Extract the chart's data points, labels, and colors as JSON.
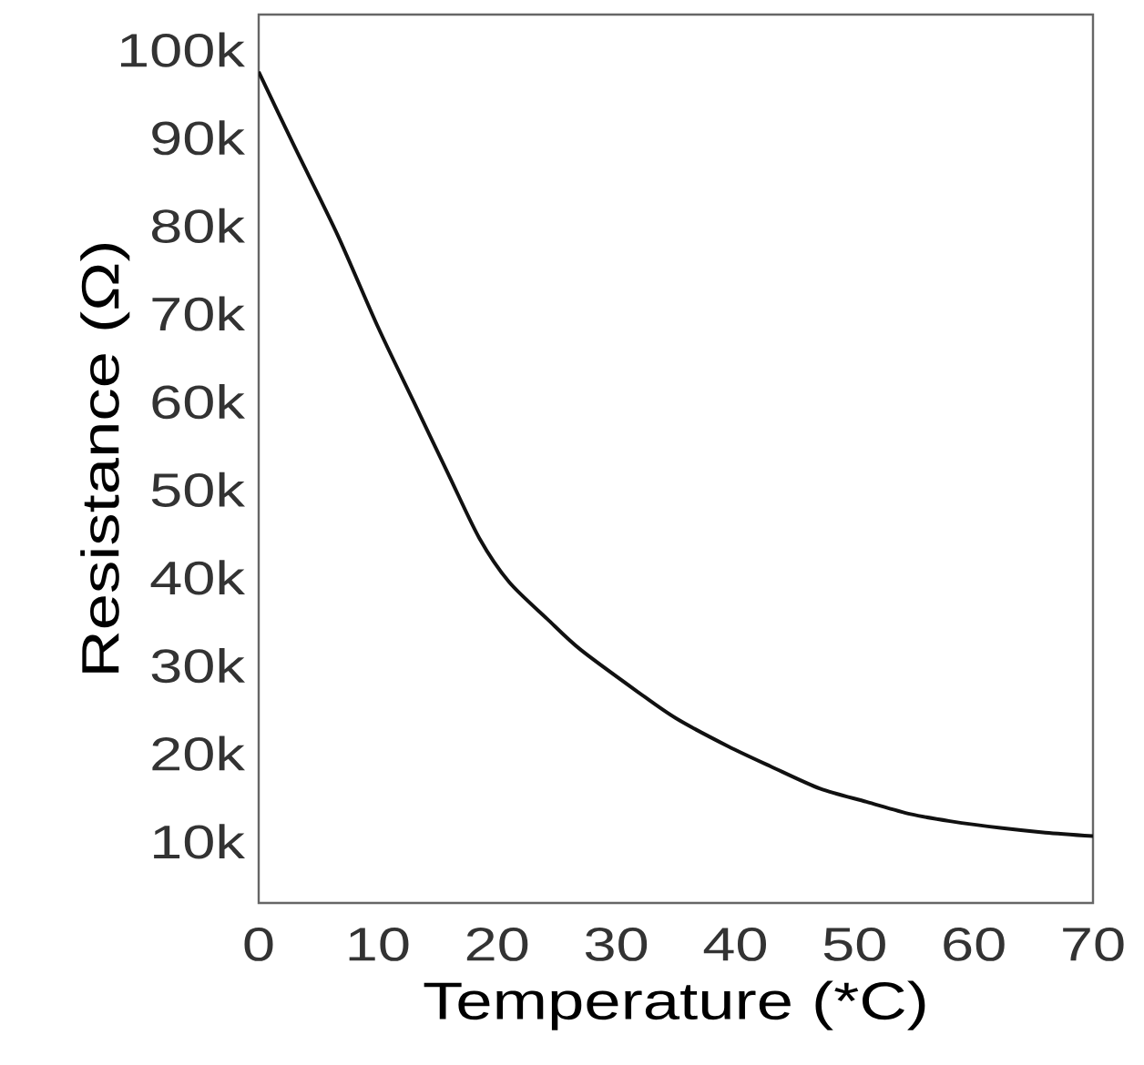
{
  "chart_data": {
    "type": "line",
    "xlabel": "Temperature (*C)",
    "ylabel": "Resistance (Ω)",
    "x": [
      0,
      3,
      6.6,
      10,
      13,
      16,
      18.5,
      21,
      24.2,
      27,
      31.8,
      35,
      39.4,
      43,
      47.1,
      51,
      54.7,
      58,
      62.4,
      66,
      70
    ],
    "values": [
      97500,
      89000,
      79000,
      68500,
      60000,
      51500,
      44500,
      39500,
      35300,
      31800,
      27000,
      24000,
      20800,
      18500,
      16000,
      14500,
      13100,
      12300,
      11500,
      11000,
      10600
    ],
    "color": "#111111",
    "xlim": [
      0,
      70
    ],
    "xticks": [
      0,
      10,
      20,
      30,
      40,
      50,
      60,
      70
    ],
    "ylim": [
      3000,
      104000
    ],
    "yticks": [
      {
        "value": 10000,
        "label": "10k"
      },
      {
        "value": 20000,
        "label": "20k"
      },
      {
        "value": 30000,
        "label": "30k"
      },
      {
        "value": 40000,
        "label": "40k"
      },
      {
        "value": 50000,
        "label": "50k"
      },
      {
        "value": 60000,
        "label": "60k"
      },
      {
        "value": 70000,
        "label": "70k"
      },
      {
        "value": 80000,
        "label": "80k"
      },
      {
        "value": 90000,
        "label": "90k"
      },
      {
        "value": 100000,
        "label": "100k"
      }
    ]
  }
}
